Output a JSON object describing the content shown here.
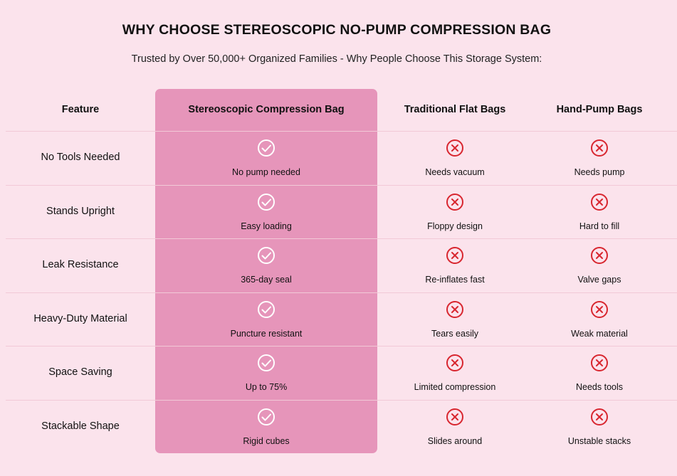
{
  "header": {
    "title": "WHY CHOOSE STEREOSCOPIC NO-PUMP COMPRESSION BAG",
    "subtitle": "Trusted by Over 50,000+ Organized Families - Why People Choose This Storage System:"
  },
  "table": {
    "columns": [
      "Feature",
      "Stereoscopic Compression Bag",
      "Traditional Flat Bags",
      "Hand-Pump Bags"
    ],
    "rows": [
      [
        "No Tools Needed",
        "No pump needed",
        "Needs vacuum",
        "Needs pump"
      ],
      [
        "Stands Upright",
        "Easy loading",
        "Floppy design",
        "Hard to fill"
      ],
      [
        "Leak Resistance",
        "365-day seal",
        "Re-inflates fast",
        "Valve gaps"
      ],
      [
        "Heavy-Duty Material",
        "Puncture resistant",
        "Tears easily",
        "Weak material"
      ],
      [
        "Space Saving",
        "Up to 75%",
        "Limited compression",
        "Needs tools"
      ],
      [
        "Stackable Shape",
        "Rigid cubes",
        "Slides around",
        "Unstable stacks"
      ]
    ]
  }
}
